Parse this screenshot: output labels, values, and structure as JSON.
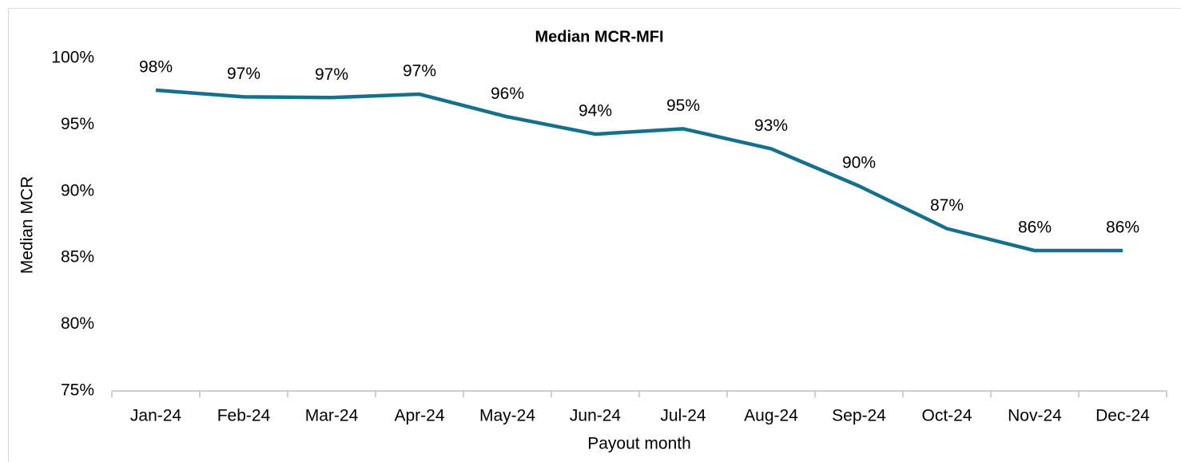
{
  "chart_data": {
    "type": "line",
    "title": "Median MCR-MFI",
    "x_label": "Payout month",
    "y_label": "Median MCR",
    "categories": [
      "Jan-24",
      "Feb-24",
      "Mar-24",
      "Apr-24",
      "May-24",
      "Jun-24",
      "Jul-24",
      "Aug-24",
      "Sep-24",
      "Oct-24",
      "Nov-24",
      "Dec-24"
    ],
    "series": [
      {
        "name": "Median MCR-MFI",
        "color": "#17708a",
        "values": [
          97.6,
          97.1,
          97.05,
          97.3,
          95.6,
          94.3,
          94.7,
          93.2,
          90.4,
          87.2,
          85.55,
          85.55
        ],
        "value_labels": [
          "98%",
          "97%",
          "97%",
          "97%",
          "96%",
          "94%",
          "95%",
          "93%",
          "90%",
          "87%",
          "86%",
          "86%"
        ]
      }
    ],
    "ylim": [
      75,
      100
    ],
    "yticks": [
      {
        "value": 75,
        "label": "75%"
      },
      {
        "value": 80,
        "label": "80%"
      },
      {
        "value": 85,
        "label": "85%"
      },
      {
        "value": 90,
        "label": "90%"
      },
      {
        "value": 95,
        "label": "95%"
      },
      {
        "value": 100,
        "label": "100%"
      }
    ],
    "grid": false
  }
}
